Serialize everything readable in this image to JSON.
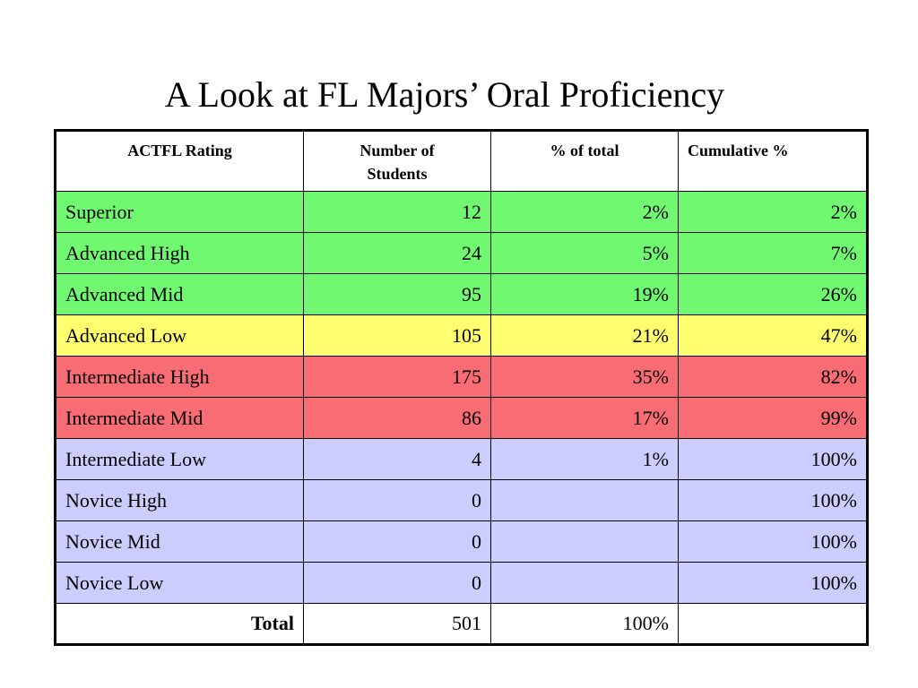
{
  "slide": {
    "title": "A Look at FL Majors’ Oral Proficiency"
  },
  "table": {
    "headers": {
      "rating": "ACTFL Rating",
      "students_line1": "Number of",
      "students_line2": "Students",
      "percent": "% of total",
      "cumulative": "Cumulative %"
    },
    "rows": [
      {
        "rating": "Superior",
        "students": "12",
        "percent": "2%",
        "cumulative": "2%",
        "band": "green"
      },
      {
        "rating": "Advanced High",
        "students": "24",
        "percent": "5%",
        "cumulative": "7%",
        "band": "green"
      },
      {
        "rating": "Advanced Mid",
        "students": "95",
        "percent": "19%",
        "cumulative": "26%",
        "band": "green"
      },
      {
        "rating": "Advanced Low",
        "students": "105",
        "percent": "21%",
        "cumulative": "47%",
        "band": "yellow"
      },
      {
        "rating": "Intermediate High",
        "students": "175",
        "percent": "35%",
        "cumulative": "82%",
        "band": "red"
      },
      {
        "rating": "Intermediate Mid",
        "students": "86",
        "percent": "17%",
        "cumulative": "99%",
        "band": "red"
      },
      {
        "rating": "Intermediate Low",
        "students": "4",
        "percent": "1%",
        "cumulative": "100%",
        "band": "blue"
      },
      {
        "rating": "Novice High",
        "students": "0",
        "percent": "",
        "cumulative": "100%",
        "band": "blue"
      },
      {
        "rating": "Novice Mid",
        "students": "0",
        "percent": "",
        "cumulative": "100%",
        "band": "blue"
      },
      {
        "rating": "Novice Low",
        "students": "0",
        "percent": "",
        "cumulative": "100%",
        "band": "blue"
      }
    ],
    "total": {
      "label": "Total",
      "students": "501",
      "percent": "100%",
      "cumulative": ""
    }
  },
  "colors": {
    "green": "#70f870",
    "yellow": "#ffff70",
    "red": "#f86c74",
    "blue": "#cccdfc"
  }
}
